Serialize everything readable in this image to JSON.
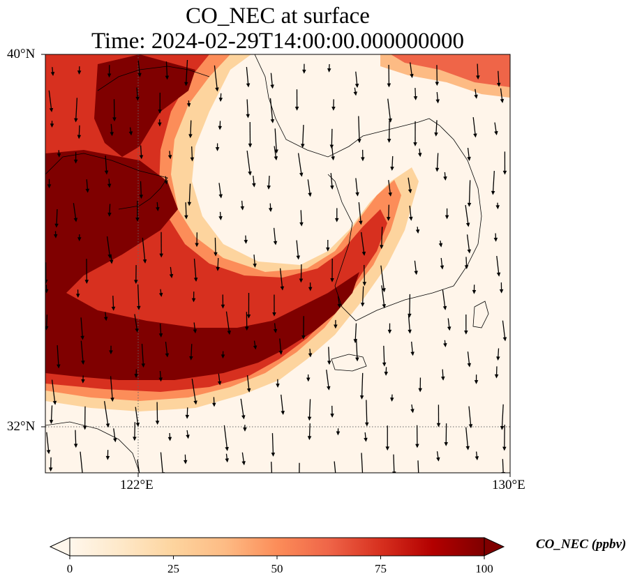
{
  "title_line1": "CO_NEC at surface",
  "title_line2": "Time: 2024-02-29T14:00:00.000000000",
  "axes": {
    "lat_ticks": [
      "40°N",
      "32°N"
    ],
    "lon_ticks": [
      "122°E",
      "130°E"
    ],
    "lon_range": [
      120,
      130
    ],
    "lat_range": [
      31,
      40
    ]
  },
  "colorbar": {
    "label": "CO_NEC (ppbv)",
    "ticks": [
      "0",
      "25",
      "50",
      "75",
      "100"
    ],
    "range": [
      0,
      100
    ],
    "extend": "both",
    "colormap": "OrRd",
    "colors": [
      "#fff7ec",
      "#fee8c8",
      "#fdd49e",
      "#fdbb84",
      "#fc8d59",
      "#ef6548",
      "#d7301f",
      "#b30000",
      "#7f0000"
    ]
  },
  "wind_vectors": "shown",
  "gridlines": "dotted at 122°E and 32°N"
}
